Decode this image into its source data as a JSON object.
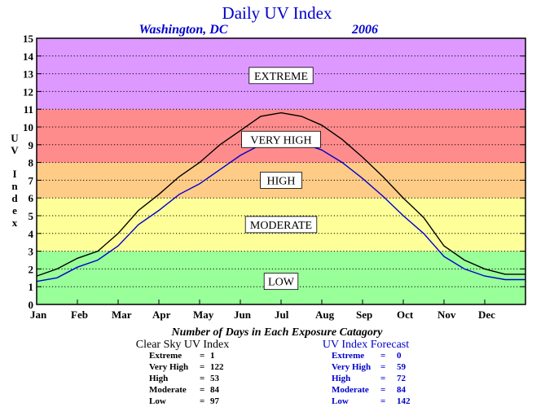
{
  "chart_data": {
    "type": "line",
    "title": "Daily UV Index",
    "subtitle_location": "Washington, DC",
    "subtitle_year": "2006",
    "ylabel": "UV Index",
    "ylim": [
      0,
      15
    ],
    "yticks": [
      0,
      1,
      2,
      3,
      4,
      5,
      6,
      7,
      8,
      9,
      10,
      11,
      12,
      13,
      14,
      15
    ],
    "months": [
      "Jan",
      "Feb",
      "Mar",
      "Apr",
      "May",
      "Jun",
      "Jul",
      "Aug",
      "Sep",
      "Oct",
      "Nov",
      "Dec"
    ],
    "grid": true,
    "bands": [
      {
        "label": "LOW",
        "from": 0,
        "to": 3,
        "color": "#99ff99",
        "label_y": 1.3
      },
      {
        "label": "MODERATE",
        "from": 3,
        "to": 6,
        "color": "#ffff99",
        "label_y": 4.5
      },
      {
        "label": "HIGH",
        "from": 6,
        "to": 8,
        "color": "#ffcc88",
        "label_y": 7.0
      },
      {
        "label": "VERY HIGH",
        "from": 8,
        "to": 11,
        "color": "#ff8c8c",
        "label_y": 9.3
      },
      {
        "label": "EXTREME",
        "from": 11,
        "to": 15,
        "color": "#dd99ff",
        "label_y": 12.9
      }
    ],
    "series": [
      {
        "name": "Clear Sky UV Index",
        "color": "#000000",
        "x_month": [
          0.0,
          0.5,
          1.0,
          1.5,
          2.0,
          2.5,
          3.0,
          3.5,
          4.0,
          4.5,
          5.0,
          5.5,
          6.0,
          6.5,
          7.0,
          7.5,
          8.0,
          8.5,
          9.0,
          9.5,
          10.0,
          10.5,
          11.0,
          11.5,
          12.0
        ],
        "y": [
          1.6,
          2.0,
          2.6,
          3.0,
          4.0,
          5.3,
          6.2,
          7.2,
          8.0,
          9.0,
          9.8,
          10.6,
          10.8,
          10.6,
          10.1,
          9.3,
          8.3,
          7.2,
          6.0,
          4.9,
          3.3,
          2.5,
          2.0,
          1.7,
          1.7
        ]
      },
      {
        "name": "UV Index Forecast",
        "color": "#0000cc",
        "x_month": [
          0.0,
          0.5,
          1.0,
          1.5,
          2.0,
          2.5,
          3.0,
          3.5,
          4.0,
          4.5,
          5.0,
          5.5,
          6.0,
          6.5,
          7.0,
          7.5,
          8.0,
          8.5,
          9.0,
          9.5,
          10.0,
          10.5,
          11.0,
          11.5,
          12.0
        ],
        "y": [
          1.3,
          1.5,
          2.1,
          2.5,
          3.3,
          4.5,
          5.3,
          6.2,
          6.8,
          7.6,
          8.4,
          9.0,
          9.3,
          9.1,
          8.7,
          8.0,
          7.1,
          6.1,
          5.0,
          4.0,
          2.7,
          2.0,
          1.6,
          1.4,
          1.4
        ]
      }
    ],
    "summary": {
      "title": "Number of Days in Each Exposure Catagory",
      "clear_sky": {
        "heading": "Clear Sky UV Index",
        "rows": [
          {
            "label": "Extreme",
            "value": "1"
          },
          {
            "label": "Very High",
            "value": "122"
          },
          {
            "label": "High",
            "value": "53"
          },
          {
            "label": "Moderate",
            "value": "84"
          },
          {
            "label": "Low",
            "value": "97"
          }
        ]
      },
      "forecast": {
        "heading": "UV Index Forecast",
        "rows": [
          {
            "label": "Extreme",
            "value": "0"
          },
          {
            "label": "Very High",
            "value": "59"
          },
          {
            "label": "High",
            "value": "72"
          },
          {
            "label": "Moderate",
            "value": "84"
          },
          {
            "label": "Low",
            "value": "142"
          }
        ]
      }
    }
  }
}
